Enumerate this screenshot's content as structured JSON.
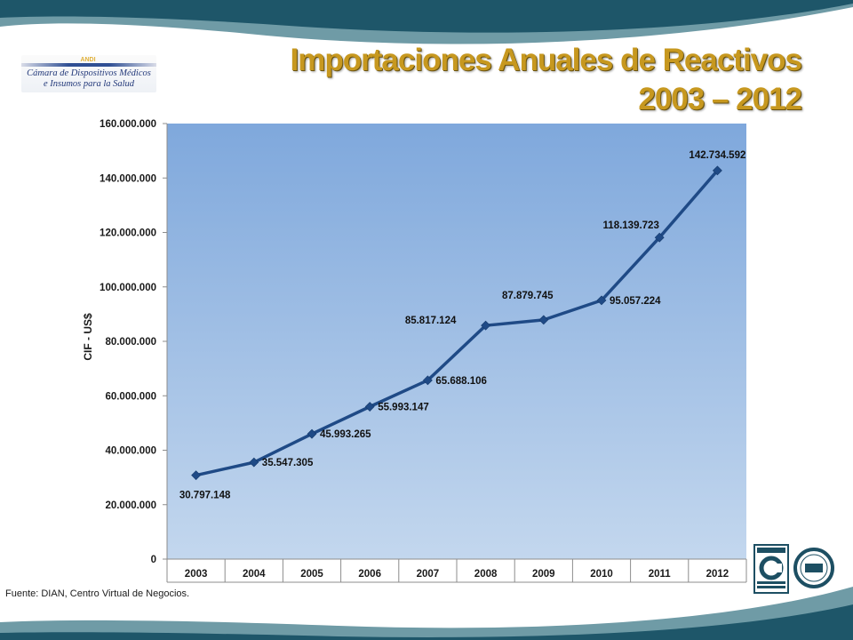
{
  "title": {
    "line1": "Importaciones Anuales de Reactivos",
    "line2": "2003 – 2012"
  },
  "logo": {
    "mark": "ANDI",
    "name": "ANDI",
    "line1": "Cámara de Dispositivos Médicos",
    "line2": "e Insumos para la Salud"
  },
  "source": "Fuente: DIAN, Centro Virtual de Negocios.",
  "colors": {
    "title_gold": "#c7981f",
    "line": "#1f4a86",
    "plot_top": "#7fa8dc",
    "plot_bottom": "#c3d7ee",
    "banner_dark": "#1e5669",
    "banner_light": "#6f9ba6"
  },
  "chart_data": {
    "type": "line",
    "ylabel": "CIF - US$",
    "xlabel": "",
    "ylim": [
      0,
      160000000
    ],
    "yticks": [
      0,
      20000000,
      40000000,
      60000000,
      80000000,
      100000000,
      120000000,
      140000000,
      160000000
    ],
    "ytick_labels": [
      "0",
      "20.000.000",
      "40.000.000",
      "60.000.000",
      "80.000.000",
      "100.000.000",
      "120.000.000",
      "140.000.000",
      "160.000.000"
    ],
    "categories": [
      "2003",
      "2004",
      "2005",
      "2006",
      "2007",
      "2008",
      "2009",
      "2010",
      "2011",
      "2012"
    ],
    "values": [
      30797148,
      35547305,
      45993265,
      55993147,
      65688106,
      85817124,
      87879745,
      95057224,
      118139723,
      142734592
    ],
    "data_labels": [
      "30.797.148",
      "35.547.305",
      "45.993.265",
      "55.993.147",
      "65.688.106",
      "85.817.124",
      "87.879.745",
      "95.057.224",
      "118.139.723",
      "142.734.592"
    ],
    "label_positions": [
      "below",
      "right",
      "right",
      "right",
      "right",
      "above-left",
      "above",
      "right",
      "above-left",
      "above"
    ],
    "marker": "diamond",
    "grid": false,
    "legend": "none"
  },
  "badges": {
    "left_icon": "icontec-certification-icon",
    "right_icon": "iqnet-certification-icon"
  }
}
